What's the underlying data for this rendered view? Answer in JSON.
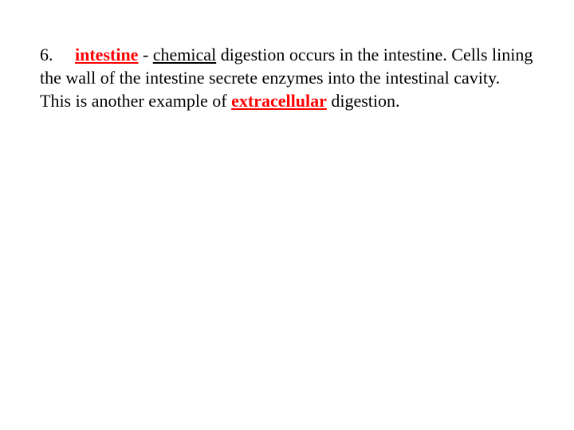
{
  "item": {
    "number": "6.",
    "label_intestine": "intestine",
    "dash": " - ",
    "label_chemical": "chemical",
    "text_after_chemical": " digestion occurs in the intestine.  Cells lining the wall of the intestine secrete enzymes into the intestinal cavity.  This is another example of ",
    "label_extracellular": "extracellular",
    "text_tail": " digestion."
  },
  "colors": {
    "background": "#ffffff",
    "text": "#000000",
    "highlight": "#ff0000"
  },
  "typography": {
    "font_family": "Times New Roman",
    "font_size_pt": 16,
    "line_height": 1.32
  }
}
